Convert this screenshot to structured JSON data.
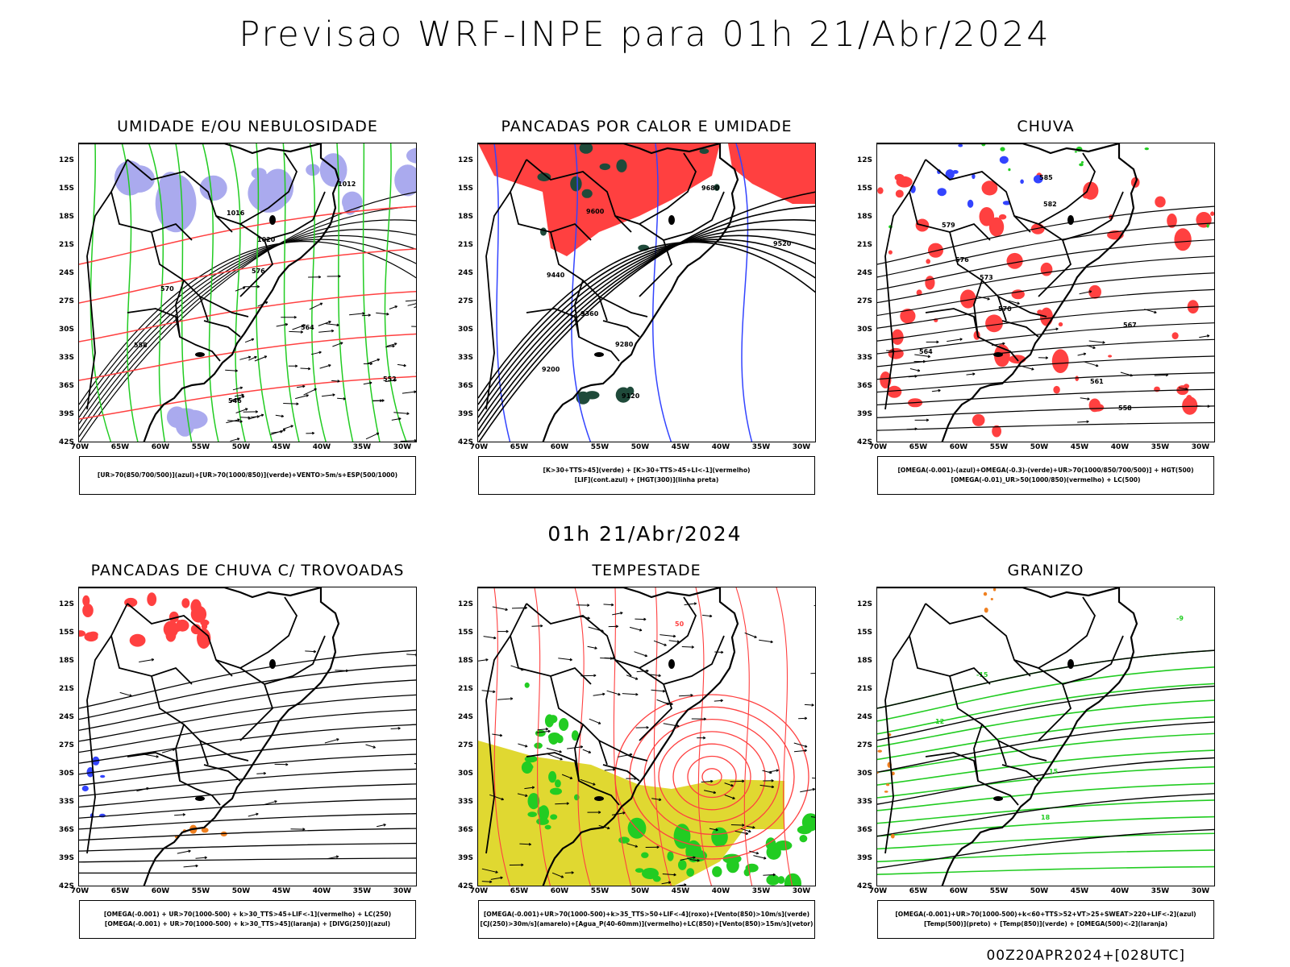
{
  "header": {
    "title": "Previsao WRF-INPE  para 01h 21/Abr/2024"
  },
  "mid_date": "01h 21/Abr/2024",
  "footer": {
    "stamp": "00Z20APR2024+[028UTC]"
  },
  "colors": {
    "blue": "#3344ff",
    "lavender": "#aaaaee",
    "green": "#22cc22",
    "red": "#ff4040",
    "darkgreen": "#1f4a3a",
    "yellow": "#e0d831",
    "orange": "#f08020",
    "purple": "#aa22cc"
  },
  "axes": {
    "lat_labels": [
      "12S",
      "15S",
      "18S",
      "21S",
      "24S",
      "27S",
      "30S",
      "33S",
      "36S",
      "39S",
      "42S"
    ],
    "lon_labels": [
      "70W",
      "65W",
      "60W",
      "55W",
      "50W",
      "45W",
      "40W",
      "35W",
      "30W"
    ]
  },
  "panels": [
    {
      "title": "UMIDADE E/OU NEBULOSIDADE",
      "legend": [
        "[UR>70(850/700/500)](azul)+[UR>70(1000/850)](verde)+VENTO>5m/s+ESP(500/1000)"
      ],
      "contour_labels": [
        "1012",
        "1016",
        "1020",
        "576",
        "570",
        "564",
        "558",
        "552",
        "546"
      ]
    },
    {
      "title": "PANCADAS POR CALOR E UMIDADE",
      "legend": [
        "[K>30+TTS>45](verde) + [K>30+TTS>45+LI<-1](vermelho)",
        "[LIF](cont.azul) + [HGT(300)](linha preta)"
      ],
      "contour_labels": [
        "9680",
        "9600",
        "9520",
        "9440",
        "9360",
        "9280",
        "9200",
        "9120"
      ]
    },
    {
      "title": "CHUVA",
      "legend": [
        "[OMEGA(-0.001)-(azul)+OMEGA(-0.3)-(verde)+UR>70(1000/850/700/500)] + HGT(500)",
        "[OMEGA(-0.01)_UR>50(1000/850)(vermelho) + LC(500)"
      ],
      "contour_labels": [
        "585",
        "582",
        "579",
        "576",
        "573",
        "570",
        "567",
        "564",
        "561",
        "558"
      ]
    },
    {
      "title": "PANCADAS DE CHUVA C/ TROVOADAS",
      "legend": [
        "[OMEGA(-0.001) + UR>70(1000-500) + k>30_TTS>45+LIF<-1](vermelho) + LC(250)",
        "[OMEGA(-0.001) + UR>70(1000-500) + k>30_TTS>45](laranja) + [DIVG(250)](azul)"
      ],
      "contour_labels": []
    },
    {
      "title": "TEMPESTADE",
      "legend": [
        "[OMEGA(-0.001)+UR>70(1000-500)+k>35_TTS>50+LIF<-4](roxo)+[Vento(850)>10m/s](verde)",
        "[CJ(250)>30m/s](amarelo)+[Agua_P(40-60mm)](vermelho)+LC(850)+[Vento(850)>15m/s](vetor)"
      ],
      "contour_labels": [
        "50"
      ]
    },
    {
      "title": "GRANIZO",
      "legend": [
        "[OMEGA(-0.001)+UR>70(1000-500)+k<60+TTS>52+VT>25+SWEAT>220+LIF<-2](azul)",
        "[Temp(500)](preto) + [Temp(850)](verde) + [OMEGA(500)<-2](laranja)"
      ],
      "contour_labels": [
        "-9",
        "-15",
        "12",
        "15",
        "18"
      ]
    }
  ]
}
